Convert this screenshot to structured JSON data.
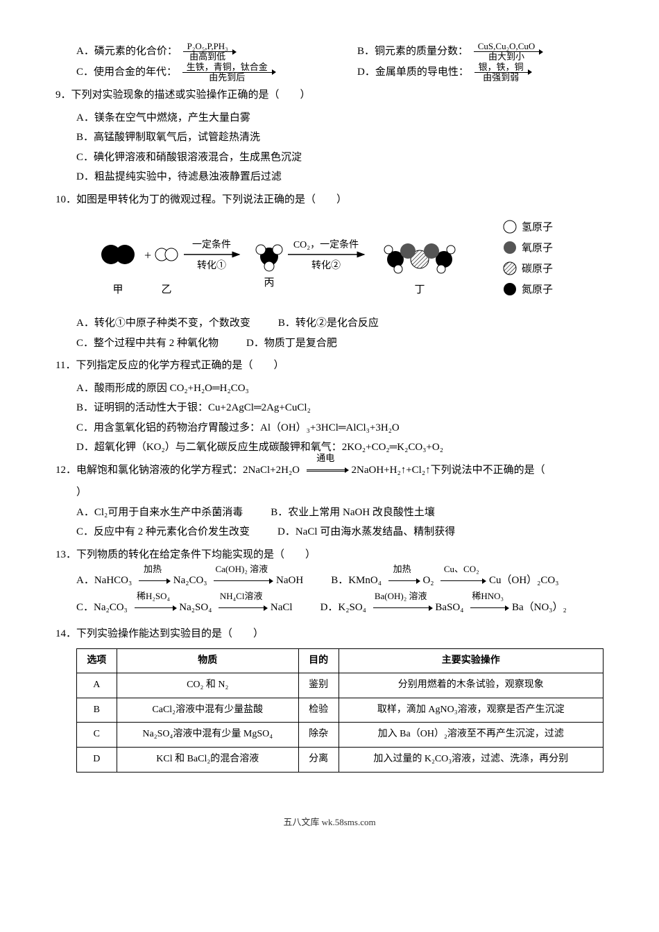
{
  "q8": {
    "A_label": "A．磷元素的化合价：",
    "A_top": "P₂O₅,P,PH₃",
    "A_bot": "由高到低",
    "B_label": "B．铜元素的质量分数：",
    "B_top": "CuS,Cu₂O,CuO",
    "B_bot": "由大到小",
    "C_label": "C．使用合金的年代：",
    "C_top": "生铁，青铜，钛合金",
    "C_bot": "由先到后",
    "D_label": "D．金属单质的导电性：",
    "D_top": "银，铁，铜",
    "D_bot": "由强到弱"
  },
  "q9": {
    "stem": "9．下列对实验现象的描述或实验操作正确的是（　　）",
    "A": "A．镁条在空气中燃烧，产生大量白雾",
    "B": "B．高锰酸钾制取氧气后，试管趁热清洗",
    "C": "C．碘化钾溶液和硝酸银溶液混合，生成黑色沉淀",
    "D": "D．粗盐提纯实验中，待滤悬浊液静置后过滤"
  },
  "q10": {
    "stem": "10．如图是甲转化为丁的微观过程。下列说法正确的是（　　）",
    "A": "A．转化①中原子种类不变，个数改变",
    "B": "B．转化②是化合反应",
    "C": "C．整个过程中共有 2 种氧化物",
    "D": "D．物质丁是复合肥",
    "diagram": {
      "labels": {
        "jia": "甲",
        "yi": "乙",
        "bing": "丙",
        "ding": "丁",
        "step1": "一定条件",
        "step1b": "转化①",
        "step2top": "CO₂，一定条件",
        "step2b": "转化②"
      },
      "legend": {
        "h": "氢原子",
        "o": "氧原子",
        "c": "碳原子",
        "n": "氮原子"
      },
      "colors": {
        "h": "#ffffff",
        "o": "#555555",
        "c": "url(#hatch)",
        "n": "#000000",
        "stroke": "#000"
      }
    }
  },
  "q11": {
    "stem": "11．下列指定反应的化学方程式正确的是（　　）",
    "A": "A．酸雨形成的原因 CO₂+H₂O═H₂CO₃",
    "B": "B．证明铜的活动性大于银：Cu+2AgCl═2Ag+CuCl₂",
    "C": "C．用含氢氧化铝的药物治疗胃酸过多：Al（OH）₃+3HCl═AlCl₃+3H₂O",
    "D": "D．超氧化钾（KO₂）与二氧化碳反应生成碳酸钾和氧气：2KO₂+CO₂═K₂CO₃+O₂"
  },
  "q12": {
    "stem_a": "12．电解饱和氯化钠溶液的化学方程式：2NaCl+2H₂O",
    "stem_cond": "通电",
    "stem_b": "2NaOH+H₂↑+Cl₂↑下列说法中不正确的是（",
    "stem_c": "）",
    "A": "A．Cl₂可用于自来水生产中杀菌消毒",
    "B": "B．农业上常用 NaOH 改良酸性土壤",
    "C": "C．反应中有 2 种元素化合价发生改变",
    "D": "D．NaCl 可由海水蒸发结晶、精制获得"
  },
  "q13": {
    "stem": "13．下列物质的转化在给定条件下均能实现的是（　　）",
    "A": {
      "pre": "A．NaHCO₃",
      "s1": "加热",
      "m1": "Na₂CO₃",
      "s2": "Ca(OH)₂ 溶液",
      "end": "NaOH"
    },
    "B": {
      "pre": "B．KMnO₄",
      "s1": "加热",
      "m1": "O₂",
      "s2": "Cu、CO₂",
      "end": "Cu（OH）₂CO₃"
    },
    "C": {
      "pre": "C．Na₂CO₃",
      "s1": "稀H₂SO₄",
      "m1": "Na₂SO₄",
      "s2": "NH₄Cl溶液",
      "end": "NaCl"
    },
    "D": {
      "pre": "D．K₂SO₄",
      "s1": "Ba(OH)₂ 溶液",
      "m1": "BaSO₄",
      "s2": "稀HNO₃",
      "end": "Ba（NO₃）₂"
    }
  },
  "q14": {
    "stem": "14．下列实验操作能达到实验目的是（　　）",
    "headers": [
      "选项",
      "物质",
      "目的",
      "主要实验操作"
    ],
    "rows": [
      [
        "A",
        "CO₂ 和 N₂",
        "鉴别",
        "分别用燃着的木条试验，观察现象"
      ],
      [
        "B",
        "CaCl₂溶液中混有少量盐酸",
        "检验",
        "取样，滴加 AgNO₃溶液，观察是否产生沉淀"
      ],
      [
        "C",
        "Na₂SO₄溶液中混有少量 MgSO₄",
        "除杂",
        "加入 Ba（OH）₂溶液至不再产生沉淀，过滤"
      ],
      [
        "D",
        "KCl 和 BaCl₂的混合溶液",
        "分离",
        "加入过量的 K₂CO₃溶液，过滤、洗涤，再分别"
      ]
    ]
  },
  "footer": "五八文库 wk.58sms.com"
}
